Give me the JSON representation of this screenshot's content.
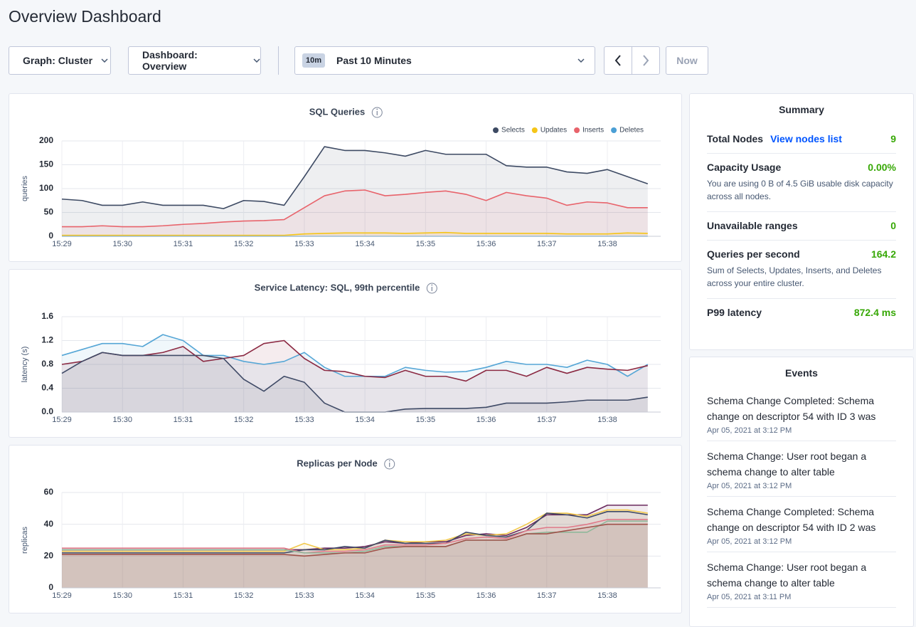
{
  "header": {
    "title": "Overview Dashboard"
  },
  "controls": {
    "graph": "Graph: Cluster",
    "dashboard": "Dashboard: Overview",
    "time_badge": "10m",
    "time_range": "Past 10 Minutes",
    "now": "Now"
  },
  "chart_data": [
    {
      "type": "line",
      "title": "SQL Queries",
      "y_label": "queries",
      "categories": [
        "15:29",
        null,
        null,
        "15:30",
        null,
        null,
        "15:31",
        null,
        null,
        "15:32",
        null,
        null,
        "15:33",
        null,
        null,
        "15:34",
        null,
        null,
        "15:35",
        null,
        null,
        "15:36",
        null,
        null,
        "15:37",
        null,
        null,
        "15:38",
        null,
        null
      ],
      "series": [
        {
          "name": "Selects",
          "color": "#3d4a63",
          "values": [
            78,
            75,
            65,
            65,
            72,
            65,
            65,
            65,
            58,
            75,
            73,
            65,
            125,
            188,
            180,
            180,
            175,
            168,
            180,
            172,
            172,
            172,
            148,
            145,
            145,
            135,
            132,
            140,
            125,
            110
          ]
        },
        {
          "name": "Updates",
          "color": "#f5c518",
          "values": [
            2,
            2,
            2,
            2,
            2,
            2,
            2,
            2,
            2,
            2,
            2,
            2,
            5,
            6,
            7,
            7,
            7,
            6,
            7,
            8,
            6,
            6,
            6,
            6,
            6,
            5,
            5,
            5,
            7,
            6
          ]
        },
        {
          "name": "Inserts",
          "color": "#e8636b",
          "values": [
            20,
            20,
            22,
            20,
            20,
            22,
            25,
            27,
            30,
            32,
            33,
            35,
            60,
            85,
            95,
            97,
            85,
            88,
            92,
            95,
            88,
            75,
            92,
            85,
            80,
            65,
            72,
            70,
            60,
            60
          ]
        },
        {
          "name": "Deletes",
          "color": "#4b9fd5",
          "values": [
            0,
            0,
            0,
            0,
            0,
            0,
            0,
            0,
            0,
            0,
            0,
            0,
            0,
            0,
            0,
            0,
            0,
            0,
            0,
            0,
            0,
            0,
            0,
            0,
            0,
            0,
            0,
            0,
            0,
            0
          ]
        }
      ],
      "ylim": [
        0,
        200
      ],
      "yticks": [
        0,
        50,
        100,
        150,
        200
      ],
      "grid": true,
      "legend": "top-right"
    },
    {
      "type": "line",
      "title": "Service Latency: SQL, 99th percentile",
      "y_label": "latency (s)",
      "categories": [
        "15:29",
        null,
        null,
        "15:30",
        null,
        null,
        "15:31",
        null,
        null,
        "15:32",
        null,
        null,
        "15:33",
        null,
        null,
        "15:34",
        null,
        null,
        "15:35",
        null,
        null,
        "15:36",
        null,
        null,
        "15:37",
        null,
        null,
        "15:38",
        null,
        null
      ],
      "series": [
        {
          "color": "#55a6d6",
          "values": [
            0.95,
            1.05,
            1.15,
            1.15,
            1.1,
            1.3,
            1.2,
            0.95,
            0.95,
            0.85,
            0.8,
            0.85,
            1.0,
            0.75,
            0.6,
            0.6,
            0.6,
            0.75,
            0.7,
            0.67,
            0.68,
            0.75,
            0.85,
            0.8,
            0.8,
            0.75,
            0.87,
            0.8,
            0.6,
            0.8
          ]
        },
        {
          "color": "#8b2942",
          "values": [
            0.8,
            0.85,
            1.0,
            0.95,
            0.95,
            1.0,
            1.1,
            0.85,
            0.9,
            0.95,
            1.15,
            1.2,
            0.9,
            0.7,
            0.68,
            0.6,
            0.58,
            0.7,
            0.6,
            0.6,
            0.52,
            0.7,
            0.7,
            0.6,
            0.75,
            0.65,
            0.75,
            0.72,
            0.7,
            0.78
          ]
        },
        {
          "color": "#3f4a66",
          "values": [
            0.65,
            0.85,
            1.0,
            0.95,
            0.95,
            0.95,
            0.95,
            0.95,
            0.9,
            0.55,
            0.35,
            0.6,
            0.5,
            0.15,
            0.0,
            0.0,
            0.0,
            0.05,
            0.06,
            0.06,
            0.06,
            0.08,
            0.15,
            0.15,
            0.15,
            0.17,
            0.2,
            0.2,
            0.2,
            0.25
          ]
        }
      ],
      "ylim": [
        0,
        1.6
      ],
      "yticks": [
        {
          "value": 0,
          "label": "0.0"
        },
        0.4,
        0.8,
        1.2,
        1.6
      ],
      "grid": true
    },
    {
      "type": "line",
      "title": "Replicas per Node",
      "y_label": "replicas",
      "categories": [
        "15:29",
        null,
        null,
        "15:30",
        null,
        null,
        "15:31",
        null,
        null,
        "15:32",
        null,
        null,
        "15:33",
        null,
        null,
        "15:34",
        null,
        null,
        "15:35",
        null,
        null,
        "15:36",
        null,
        null,
        "15:37",
        null,
        null,
        "15:38",
        null,
        null
      ],
      "series": [
        {
          "color": "#6b2a5e",
          "values": [
            24,
            24,
            24,
            24,
            24,
            24,
            24,
            24,
            24,
            24,
            24,
            24,
            24,
            25,
            25,
            26,
            29,
            28,
            29,
            29,
            33,
            34,
            33,
            38,
            46,
            46,
            46,
            52,
            52,
            52
          ]
        },
        {
          "color": "#f2c94c",
          "values": [
            23,
            23,
            23,
            23,
            23,
            23,
            23,
            23,
            23,
            23,
            23,
            23,
            28,
            24,
            24,
            25,
            30,
            29,
            29,
            30,
            34,
            33,
            34,
            40,
            47,
            47,
            45,
            49,
            49,
            47
          ]
        },
        {
          "color": "#3f4a66",
          "values": [
            22,
            22,
            22,
            22,
            22,
            22,
            22,
            22,
            22,
            22,
            22,
            22,
            24,
            24,
            26,
            25,
            30,
            28,
            28,
            28,
            35,
            33,
            32,
            36,
            47,
            46,
            44,
            48,
            48,
            46
          ]
        },
        {
          "color": "#e07a8a",
          "values": [
            25,
            25,
            25,
            25,
            25,
            25,
            25,
            25,
            25,
            25,
            25,
            25,
            22,
            23,
            23,
            24,
            27,
            27,
            27,
            28,
            31,
            32,
            31,
            36,
            38,
            38,
            40,
            43,
            43,
            43
          ]
        },
        {
          "color": "#8fb89a",
          "values": [
            24,
            24,
            24,
            24,
            24,
            24,
            24,
            24,
            24,
            24,
            24,
            24,
            22,
            22,
            22,
            23,
            26,
            26,
            26,
            26,
            30,
            30,
            30,
            34,
            35,
            35,
            35,
            42,
            42,
            42
          ]
        },
        {
          "color": "#a0524a",
          "values": [
            21,
            21,
            21,
            21,
            21,
            21,
            21,
            21,
            21,
            21,
            21,
            21,
            20,
            21,
            22,
            22,
            25,
            26,
            26,
            26,
            30,
            30,
            30,
            34,
            34,
            36,
            38,
            40,
            40,
            40
          ]
        }
      ],
      "ylim": [
        0,
        60
      ],
      "yticks": [
        0,
        20,
        40,
        60
      ],
      "grid": true
    }
  ],
  "summary": {
    "title": "Summary",
    "items": [
      {
        "label": "Total Nodes",
        "link": "View nodes list",
        "value": "9"
      },
      {
        "label": "Capacity Usage",
        "value": "0.00%",
        "description": "You are using 0 B of 4.5 GiB usable disk capacity across all nodes."
      },
      {
        "label": "Unavailable ranges",
        "value": "0"
      },
      {
        "label": "Queries per second",
        "value": "164.2",
        "description": "Sum of Selects, Updates, Inserts, and Deletes across your entire cluster."
      },
      {
        "label": "P99 latency",
        "value": "872.4 ms"
      }
    ]
  },
  "events": {
    "title": "Events",
    "items": [
      {
        "title": "Schema Change Completed: Schema change on descriptor 54 with ID 3 was",
        "date": "Apr 05, 2021 at 3:12 PM"
      },
      {
        "title": "Schema Change: User root began a schema change to alter table",
        "date": "Apr 05, 2021 at 3:12 PM"
      },
      {
        "title": "Schema Change Completed: Schema change on descriptor 54 with ID 2 was",
        "date": "Apr 05, 2021 at 3:12 PM"
      },
      {
        "title": "Schema Change: User root began a schema change to alter table",
        "date": "Apr 05, 2021 at 3:11 PM"
      }
    ]
  }
}
